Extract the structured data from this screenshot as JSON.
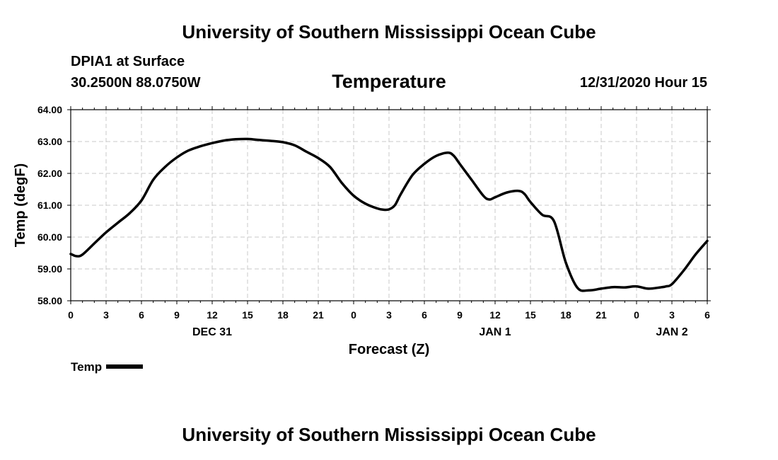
{
  "header": {
    "top_title": "University of Southern Mississippi Ocean Cube",
    "station": "DPIA1 at Surface",
    "coords": "30.2500N 88.0750W",
    "run_time": "12/31/2020 Hour 15",
    "bottom_title": "University of Southern Mississippi Ocean Cube"
  },
  "chart_data": {
    "type": "line",
    "title": "Temperature",
    "xlabel": "Forecast (Z)",
    "ylabel": "Temp (degF)",
    "ylim": [
      58.0,
      64.0
    ],
    "xlim": [
      0,
      54
    ],
    "x_unit": "hours from DEC 31 00Z",
    "yticks": [
      "58.00",
      "59.00",
      "60.00",
      "61.00",
      "62.00",
      "63.00",
      "64.00"
    ],
    "xtick_labels": [
      "0",
      "3",
      "6",
      "9",
      "12",
      "15",
      "18",
      "21",
      "0",
      "3",
      "6",
      "9",
      "12",
      "15",
      "18",
      "21",
      "0",
      "3",
      "6"
    ],
    "date_labels": [
      {
        "label": "DEC 31",
        "x": 12
      },
      {
        "label": "JAN 1",
        "x": 36
      },
      {
        "label": "JAN 2",
        "x": 51
      }
    ],
    "grid": true,
    "legend": "bottom-left",
    "series": [
      {
        "name": "Temp",
        "color": "#000000",
        "x": [
          0,
          0.5,
          1,
          2,
          3,
          4,
          5,
          6,
          7,
          8,
          9,
          10,
          11,
          12,
          13,
          14,
          15,
          16,
          17,
          18,
          19,
          20,
          21,
          22,
          23,
          24,
          25,
          26,
          26.5,
          27,
          27.5,
          28,
          29,
          30,
          31,
          32,
          32.5,
          33,
          34,
          35,
          35.5,
          36,
          37,
          38,
          38.5,
          39,
          40,
          41,
          42,
          43,
          44,
          45,
          46,
          47,
          48,
          49,
          50,
          50.5,
          51,
          52,
          53,
          54
        ],
        "values": [
          59.47,
          59.4,
          59.45,
          59.8,
          60.15,
          60.45,
          60.75,
          61.15,
          61.8,
          62.2,
          62.5,
          62.72,
          62.85,
          62.95,
          63.03,
          63.07,
          63.08,
          63.05,
          63.02,
          62.98,
          62.88,
          62.68,
          62.48,
          62.2,
          61.7,
          61.3,
          61.05,
          60.9,
          60.86,
          60.87,
          61.0,
          61.35,
          61.95,
          62.3,
          62.55,
          62.65,
          62.55,
          62.3,
          61.8,
          61.3,
          61.18,
          61.25,
          61.4,
          61.45,
          61.35,
          61.1,
          60.7,
          60.5,
          59.2,
          58.4,
          58.33,
          58.38,
          58.43,
          58.42,
          58.45,
          58.38,
          58.42,
          58.45,
          58.52,
          58.95,
          59.45,
          59.88
        ]
      }
    ]
  },
  "legend": {
    "label": "Temp"
  }
}
